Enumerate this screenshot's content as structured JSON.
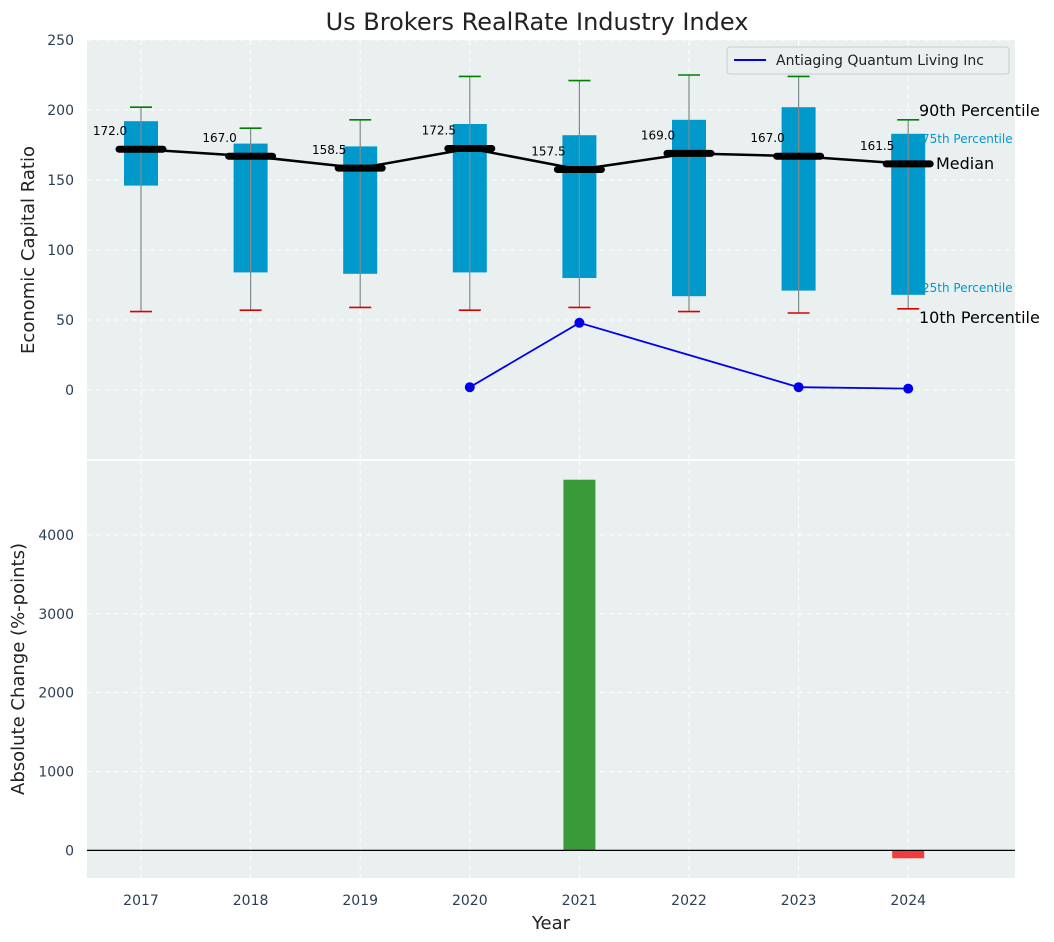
{
  "chart_data": [
    {
      "type": "box",
      "title": "Us Brokers RealRate Industry Index",
      "xlabel": "",
      "ylabel": "Economic Capital Ratio",
      "ylim": [
        -50,
        250
      ],
      "yticks": [
        0,
        50,
        100,
        150,
        200,
        250
      ],
      "grid": true,
      "categories": [
        "2017",
        "2018",
        "2019",
        "2020",
        "2021",
        "2022",
        "2023",
        "2024"
      ],
      "p10": [
        56,
        57,
        59,
        57,
        59,
        56,
        55,
        58
      ],
      "p25": [
        146,
        84,
        83,
        84,
        80,
        67,
        71,
        68
      ],
      "median": [
        172.0,
        167.0,
        158.5,
        172.5,
        157.5,
        169.0,
        167.0,
        161.5
      ],
      "median_labels": [
        "172.0",
        "167.0",
        "158.5",
        "172.5",
        "157.5",
        "169.0",
        "167.0",
        "161.5"
      ],
      "p75": [
        192,
        176,
        174,
        190,
        182,
        193,
        202,
        183
      ],
      "p90": [
        202,
        187,
        193,
        224,
        221,
        225,
        224,
        193
      ],
      "series": [
        {
          "name": "Antiaging Quantum Living Inc",
          "color": "#0000ee",
          "points": [
            {
              "x": "2020",
              "y": 2
            },
            {
              "x": "2021",
              "y": 48
            },
            {
              "x": "2023",
              "y": 2
            },
            {
              "x": "2024",
              "y": 1
            }
          ]
        }
      ],
      "legend": {
        "position": "top-right",
        "label": "Antiaging Quantum Living Inc"
      },
      "annotations": {
        "p90": "90th Percentile",
        "p75": "75th Percentile",
        "median": "Median",
        "p25": "25th Percentile",
        "p10": "10th Percentile"
      },
      "colors": {
        "box": "#0099cc",
        "p90_cap": "#008000",
        "p10_cap": "#dd0000",
        "median": "#000000",
        "p75_text": "#0099cc"
      }
    },
    {
      "type": "bar",
      "xlabel": "Year",
      "ylabel": "Absolute Change (%-points)",
      "ylim": [
        -350,
        4950
      ],
      "yticks": [
        0,
        1000,
        2000,
        3000,
        4000
      ],
      "grid": true,
      "categories": [
        "2017",
        "2018",
        "2019",
        "2020",
        "2021",
        "2022",
        "2023",
        "2024"
      ],
      "values": [
        0,
        0,
        0,
        0,
        4700,
        0,
        0,
        -100
      ],
      "colors": {
        "positive": "#3a9a3a",
        "negative": "#f03c3c"
      }
    }
  ]
}
